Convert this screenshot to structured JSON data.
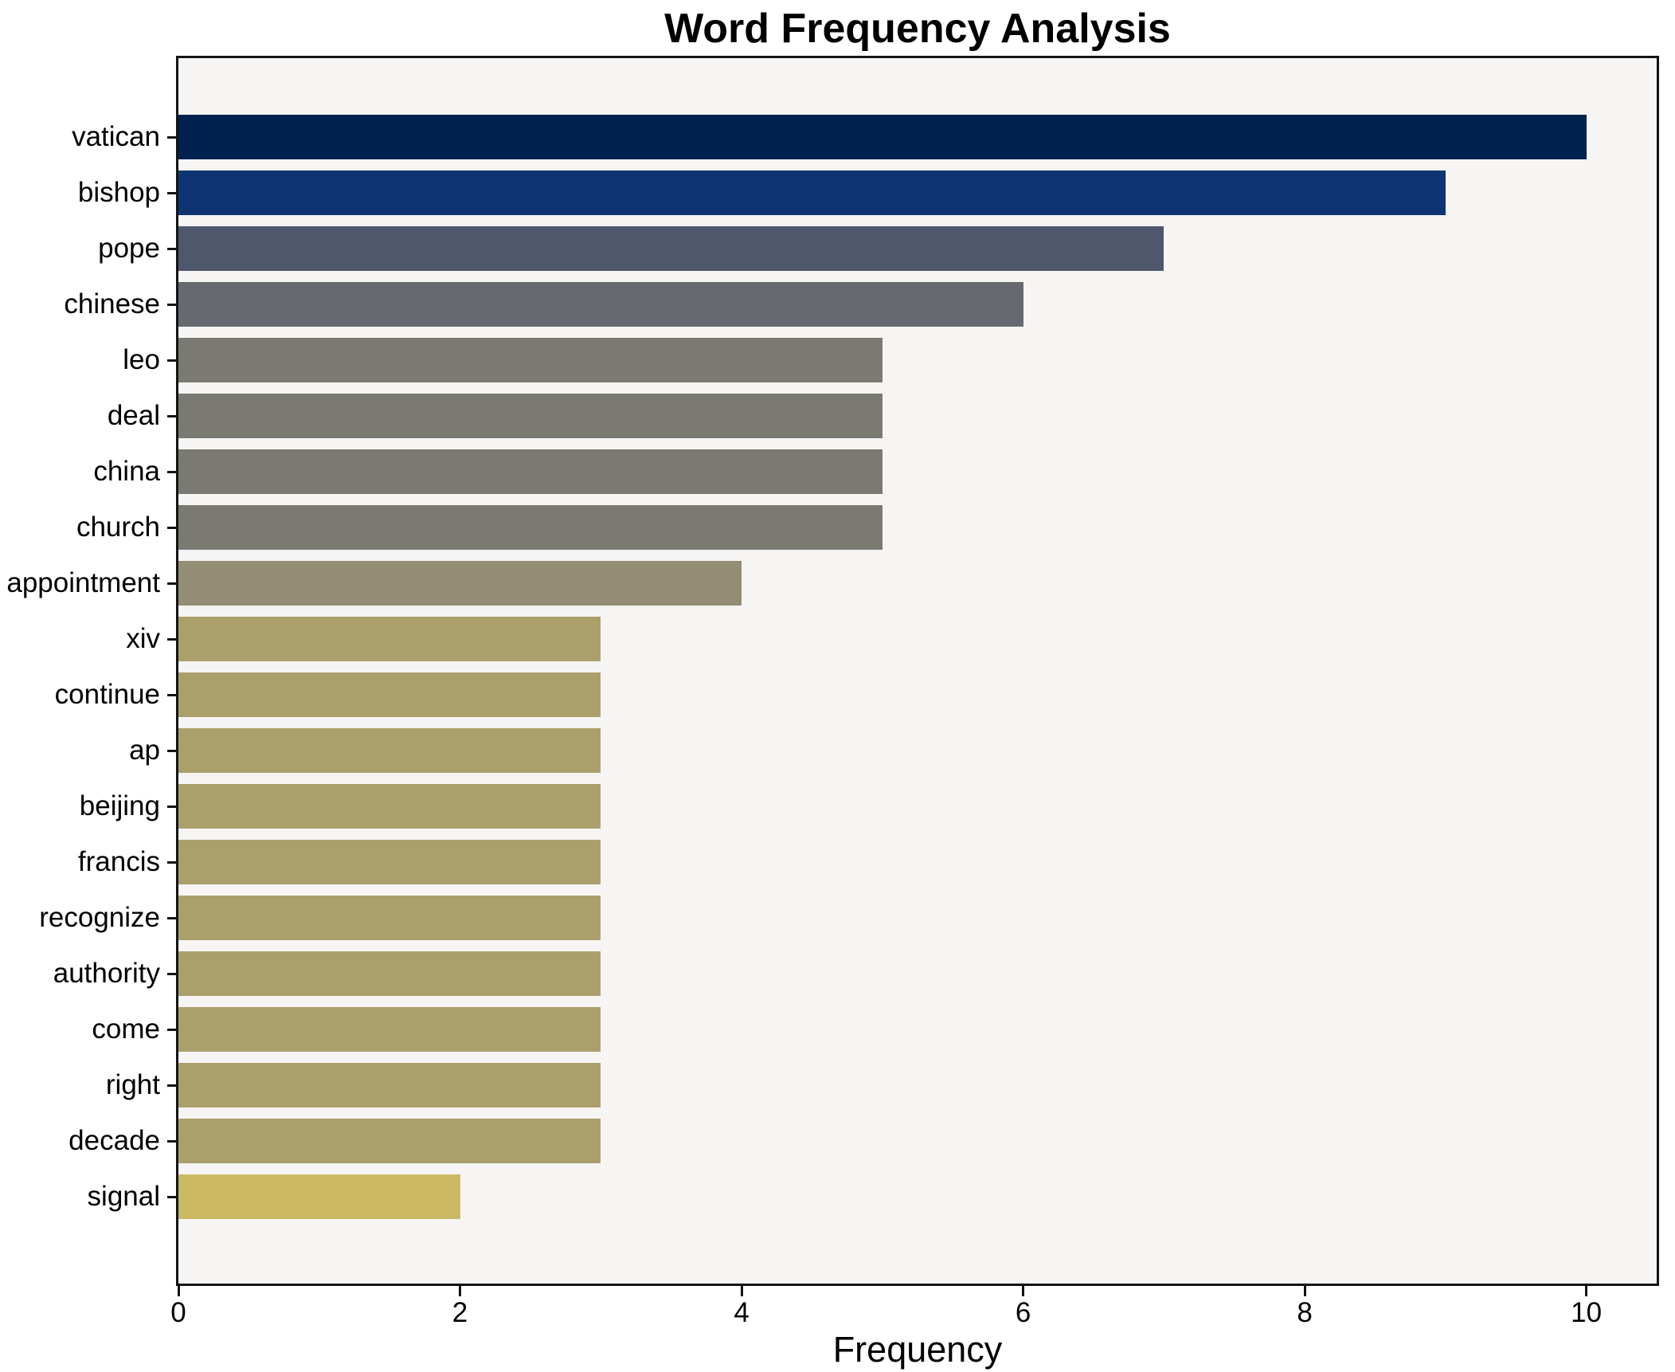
{
  "chart_data": {
    "type": "bar",
    "orientation": "horizontal",
    "title": "Word Frequency Analysis",
    "xlabel": "Frequency",
    "ylabel": "",
    "xlim": [
      0,
      10.5
    ],
    "xticks": [
      0,
      2,
      4,
      6,
      8,
      10
    ],
    "grid": false,
    "legend": "none",
    "plot_background": "#f6f5f4",
    "figure_background": "#ffffff",
    "categories": [
      "vatican",
      "bishop",
      "pope",
      "chinese",
      "leo",
      "deal",
      "china",
      "church",
      "appointment",
      "xiv",
      "continue",
      "ap",
      "beijing",
      "francis",
      "recognize",
      "authority",
      "come",
      "right",
      "decade",
      "signal"
    ],
    "values": [
      10,
      9,
      7,
      6,
      5,
      5,
      5,
      5,
      4,
      3,
      3,
      3,
      3,
      3,
      3,
      3,
      3,
      3,
      3,
      2
    ],
    "bar_colors": [
      "#00224e",
      "#0e3571",
      "#4e576c",
      "#666970",
      "#7a7972",
      "#7a7972",
      "#7a7972",
      "#7a7972",
      "#938d74",
      "#aba06c",
      "#aba06c",
      "#aba06c",
      "#aba06c",
      "#aba06c",
      "#aba06c",
      "#aba06c",
      "#aba06c",
      "#aba06c",
      "#aba06c",
      "#cbb862"
    ]
  }
}
